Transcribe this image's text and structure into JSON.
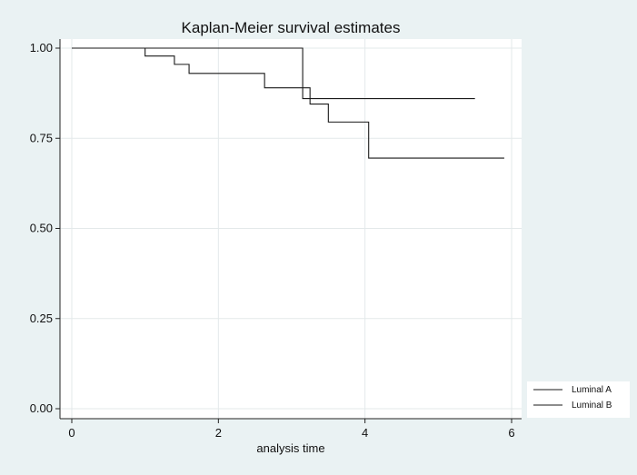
{
  "chart_data": {
    "type": "line",
    "step": true,
    "title": "Kaplan-Meier survival estimates",
    "xlabel": "analysis time",
    "ylabel": "",
    "xlim": [
      0,
      6
    ],
    "ylim": [
      0,
      1
    ],
    "x_ticks": [
      0,
      2,
      4,
      6
    ],
    "y_ticks": [
      0.0,
      0.25,
      0.5,
      0.75,
      1.0
    ],
    "x_tick_labels": [
      "0",
      "2",
      "4",
      "6"
    ],
    "y_tick_labels": [
      "0.00",
      "0.25",
      "0.50",
      "0.75",
      "1.00"
    ],
    "grid": true,
    "legend_position": "bottom-right",
    "series": [
      {
        "name": "Luminal A",
        "points": [
          [
            0,
            1.0
          ],
          [
            3.15,
            1.0
          ],
          [
            3.15,
            0.86
          ],
          [
            5.5,
            0.86
          ]
        ]
      },
      {
        "name": "Luminal B",
        "points": [
          [
            0,
            1.0
          ],
          [
            1.0,
            1.0
          ],
          [
            1.0,
            0.978
          ],
          [
            1.4,
            0.978
          ],
          [
            1.4,
            0.955
          ],
          [
            1.6,
            0.955
          ],
          [
            1.6,
            0.93
          ],
          [
            2.63,
            0.93
          ],
          [
            2.63,
            0.89
          ],
          [
            3.25,
            0.89
          ],
          [
            3.25,
            0.845
          ],
          [
            3.5,
            0.845
          ],
          [
            3.5,
            0.795
          ],
          [
            4.05,
            0.795
          ],
          [
            4.05,
            0.695
          ],
          [
            5.9,
            0.695
          ]
        ]
      }
    ],
    "colors": {
      "background": "#eaf2f3",
      "plot_background": "#ffffff",
      "grid": "#e3e9ea",
      "line": "#1a1a1a"
    }
  }
}
